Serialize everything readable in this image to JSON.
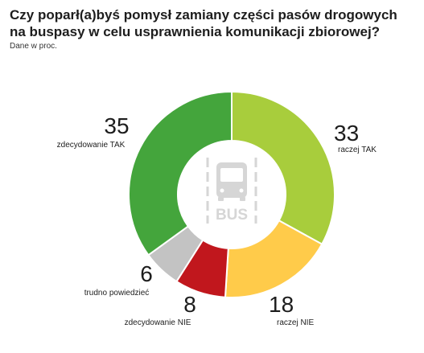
{
  "header": {
    "title": "Czy poparł(a)byś pomysł zamiany części pasów drogowych na buspasy w celu usprawnienia komunikacji zbiorowej?",
    "subtitle": "Dane w proc."
  },
  "center_icon": {
    "name": "bus-icon",
    "text": "BUS"
  },
  "chart_data": {
    "type": "pie",
    "variant": "donut",
    "title": "Czy poparł(a)byś pomysł zamiany części pasów drogowych na buspasy w celu usprawnienia komunikacji zbiorowej?",
    "subtitle": "Dane w proc.",
    "start_category": "raczej TAK",
    "direction": "clockwise",
    "slices": [
      {
        "label": "raczej TAK",
        "value": 33,
        "color": "#a8cd3c"
      },
      {
        "label": "raczej NIE",
        "value": 18,
        "color": "#ffcb4a"
      },
      {
        "label": "zdecydowanie NIE",
        "value": 8,
        "color": "#c1171d"
      },
      {
        "label": "trudno powiedzieć",
        "value": 6,
        "color": "#c3c3c3"
      },
      {
        "label": "zdecydowanie TAK",
        "value": 35,
        "color": "#44a53c"
      }
    ]
  }
}
